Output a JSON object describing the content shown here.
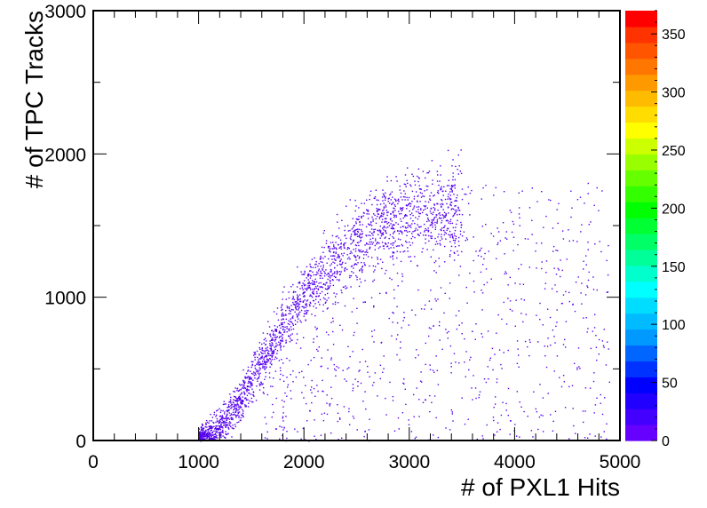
{
  "chart_data": {
    "type": "heatmap",
    "title": "",
    "xlabel": "# of PXL1 Hits",
    "ylabel": "# of TPC Tracks",
    "xlim": [
      0,
      5000
    ],
    "ylim": [
      0,
      3000
    ],
    "x_ticks": [
      0,
      1000,
      2000,
      3000,
      4000,
      5000
    ],
    "y_ticks": [
      0,
      1000,
      2000,
      3000
    ],
    "colorbar": {
      "range": [
        0,
        370
      ],
      "ticks": [
        0,
        50,
        100,
        150,
        200,
        250,
        300,
        350
      ],
      "palette": [
        "#6600ff",
        "#4400ff",
        "#2200ff",
        "#0000ff",
        "#0033ff",
        "#0066ff",
        "#0099ff",
        "#00bbff",
        "#00ddff",
        "#00ffff",
        "#00ffcc",
        "#00ff99",
        "#00ff66",
        "#00ff33",
        "#00ff00",
        "#33ff00",
        "#66ff00",
        "#99ff00",
        "#ccff00",
        "#ffff00",
        "#ffdd00",
        "#ffbb00",
        "#ff9900",
        "#ff7700",
        "#ff5500",
        "#ff3300",
        "#ff0000"
      ]
    },
    "marker_color": "#5500ee",
    "band": {
      "x": [
        1000,
        1100,
        1200,
        1300,
        1400,
        1500,
        1600,
        1700,
        1800,
        1900,
        2000,
        2100,
        2200,
        2300,
        2400,
        2500,
        2600,
        2700,
        2800,
        2900,
        3000,
        3100,
        3200,
        3300,
        3400,
        3500
      ],
      "y": [
        0,
        40,
        100,
        190,
        300,
        420,
        560,
        690,
        810,
        920,
        1020,
        1110,
        1190,
        1260,
        1330,
        1390,
        1440,
        1490,
        1530,
        1560,
        1590,
        1610,
        1620,
        1620,
        1610,
        1600
      ]
    },
    "point_counts": {
      "band": 2200,
      "spread": 750,
      "tail": 60
    },
    "x_spread_range": [
      1600,
      4900
    ],
    "tail_y_range": [
      1400,
      1800
    ]
  }
}
